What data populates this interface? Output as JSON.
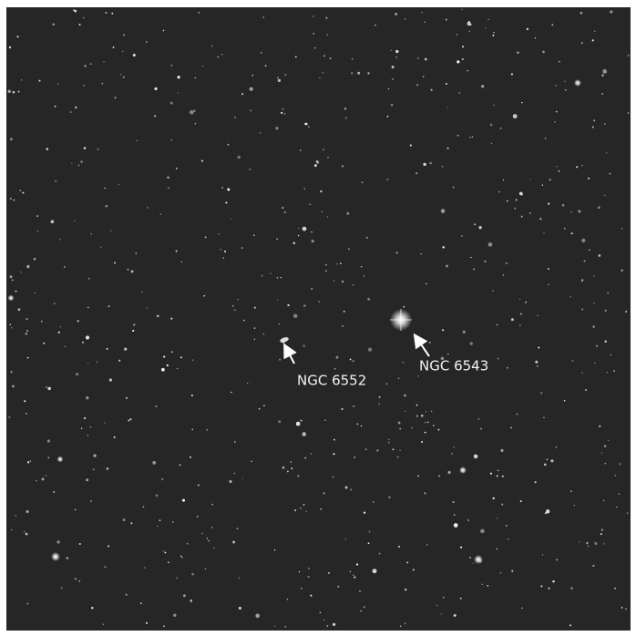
{
  "labels": [
    {
      "text": "NGC 6552"
    },
    {
      "text": "NGC 6543"
    }
  ]
}
